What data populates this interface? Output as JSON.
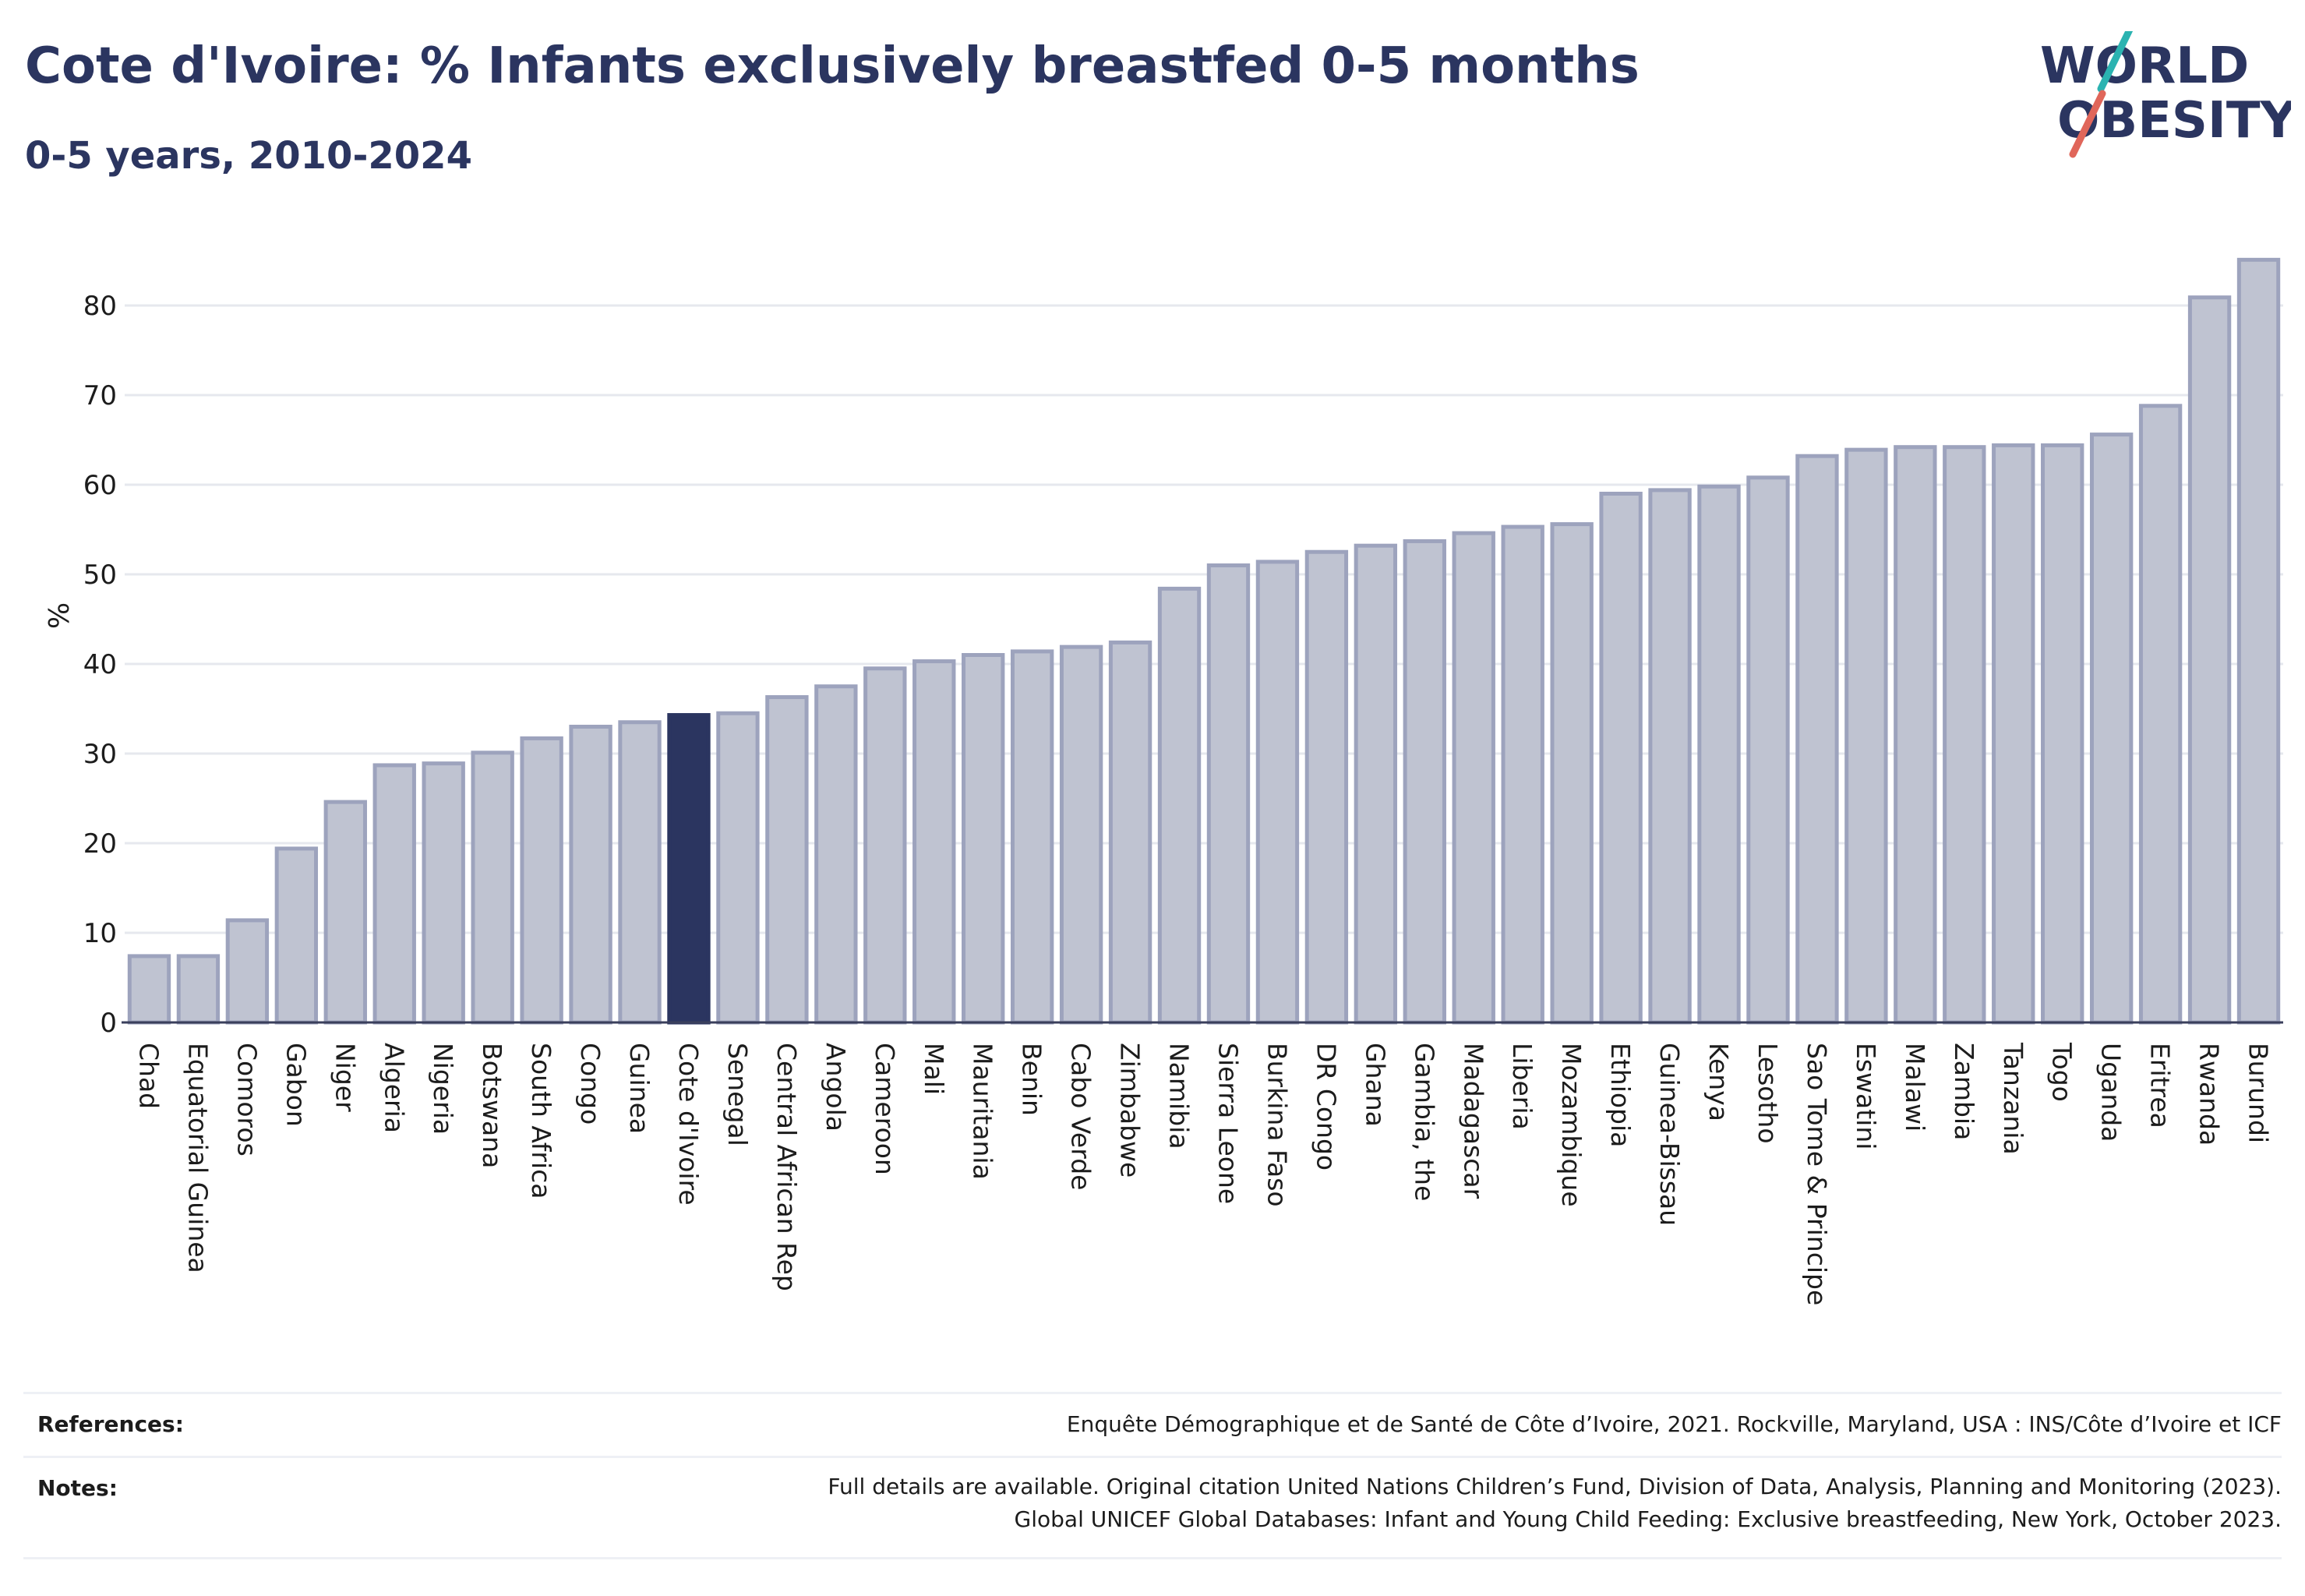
{
  "header": {
    "title": "Cote d'Ivoire: % Infants exclusively breastfed 0-5 months",
    "subtitle": "0-5 years, 2010-2024"
  },
  "logo": {
    "line1": "WORLD",
    "line2": "OBESITY"
  },
  "colors": {
    "bar": "#bfc3d1",
    "bar_stroke": "#9da3bd",
    "highlight": "#2b3560",
    "text": "#2b3560",
    "logo_slash_teal": "#2bb3b1",
    "logo_slash_red": "#e0665a"
  },
  "chart_data": {
    "type": "bar",
    "categories": [
      "Chad",
      "Equatorial Guinea",
      "Comoros",
      "Gabon",
      "Niger",
      "Algeria",
      "Nigeria",
      "Botswana",
      "South Africa",
      "Congo",
      "Guinea",
      "Cote d'Ivoire",
      "Senegal",
      "Central African Rep",
      "Angola",
      "Cameroon",
      "Mali",
      "Mauritania",
      "Benin",
      "Cabo Verde",
      "Zimbabwe",
      "Namibia",
      "Sierra Leone",
      "Burkina Faso",
      "DR Congo",
      "Ghana",
      "Gambia, the",
      "Madagascar",
      "Liberia",
      "Mozambique",
      "Ethiopia",
      "Guinea-Bissau",
      "Kenya",
      "Lesotho",
      "Sao Tome & Principe",
      "Eswatini",
      "Malawi",
      "Zambia",
      "Tanzania",
      "Togo",
      "Uganda",
      "Eritrea",
      "Rwanda",
      "Burundi"
    ],
    "values": [
      7.4,
      7.4,
      11.4,
      19.4,
      24.6,
      28.7,
      28.9,
      30.1,
      31.7,
      33.0,
      33.5,
      34.3,
      34.5,
      36.3,
      37.5,
      39.5,
      40.3,
      41.0,
      41.4,
      41.9,
      42.4,
      48.4,
      51.0,
      51.4,
      52.5,
      53.2,
      53.7,
      54.6,
      55.3,
      55.6,
      59.0,
      59.4,
      59.8,
      60.8,
      63.2,
      63.9,
      64.2,
      64.2,
      64.4,
      64.4,
      65.6,
      68.8,
      80.9,
      85.1
    ],
    "highlight": "Cote d'Ivoire",
    "ylabel": "%",
    "xlabel": "",
    "ylim": [
      0,
      88
    ],
    "yticks": [
      0,
      10,
      20,
      30,
      40,
      50,
      60,
      70,
      80
    ],
    "grid": true
  },
  "footer": {
    "references_label": "References:",
    "references_text": "Enquête Démographique et de Santé de Côte d’Ivoire, 2021. Rockville, Maryland, USA : INS/Côte d’Ivoire et ICF",
    "notes_label": "Notes:",
    "notes_line1": "Full details are available. Original citation United Nations Children’s Fund, Division of Data, Analysis, Planning and Monitoring (2023).",
    "notes_line2": "Global UNICEF Global Databases: Infant and Young Child Feeding: Exclusive breastfeeding, New York, October 2023."
  }
}
